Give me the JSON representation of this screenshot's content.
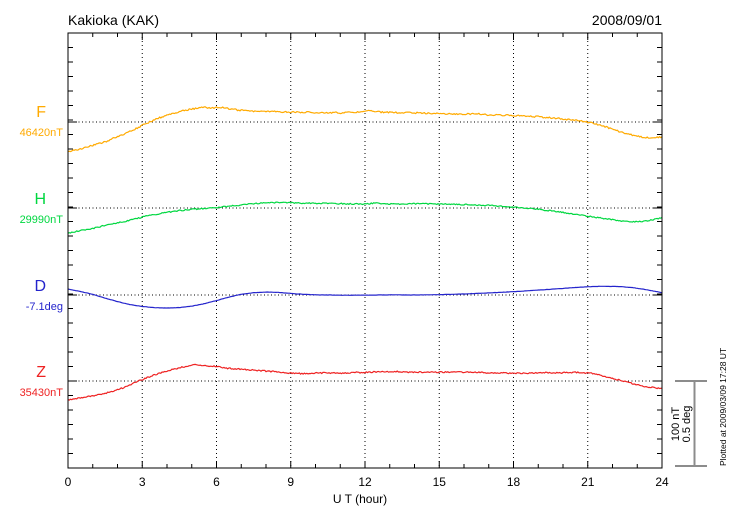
{
  "header": {
    "title": "Kakioka (KAK)",
    "date": "2008/09/01"
  },
  "x_axis": {
    "label": "U T (hour)",
    "tick_labels": [
      "0",
      "3",
      "6",
      "9",
      "12",
      "15",
      "18",
      "21",
      "24"
    ],
    "tick_hours": [
      0,
      3,
      6,
      9,
      12,
      15,
      18,
      21,
      24
    ]
  },
  "scale_bar": {
    "line1": "100 nT",
    "line2": "0.5 deg",
    "color": "#8c8c8c"
  },
  "footer": {
    "plotted_at": "Plotted at 2009/03/09 17:28 UT"
  },
  "chart_data": {
    "type": "line",
    "title": "Kakioka (KAK)",
    "date": "2008/09/01",
    "xlabel": "U T (hour)",
    "x_range": [
      0,
      24
    ],
    "x_tick_step_hours": 1,
    "x_grid_step_hours": 3,
    "grid": "dotted vertical lines every 3 h; dotted horizontal baseline per component",
    "legend_position": "left of each trace",
    "scale": {
      "px_per_unit_note": "scale bar height = 100 nT or 0.5 deg",
      "bar_labels": [
        "100 nT",
        "0.5 deg"
      ]
    },
    "series": [
      {
        "name": "F",
        "baseline_label": "46420nT",
        "baseline_value": 46420,
        "unit": "nT",
        "color": "#FFAA00",
        "points": [
          [
            0,
            -34
          ],
          [
            0.5,
            -31
          ],
          [
            1,
            -27
          ],
          [
            1.5,
            -23
          ],
          [
            2,
            -17
          ],
          [
            2.5,
            -11
          ],
          [
            3,
            -4
          ],
          [
            3.3,
            0
          ],
          [
            3.6,
            4
          ],
          [
            4,
            8
          ],
          [
            4.5,
            12
          ],
          [
            5,
            15
          ],
          [
            5.5,
            17
          ],
          [
            5.8,
            16
          ],
          [
            6.2,
            17
          ],
          [
            6.5,
            15
          ],
          [
            7,
            13.5
          ],
          [
            7.5,
            12.5
          ],
          [
            8,
            12
          ],
          [
            9,
            11.5
          ],
          [
            10,
            11
          ],
          [
            11,
            10.5
          ],
          [
            11.8,
            11.5
          ],
          [
            12.2,
            13
          ],
          [
            12.5,
            11.5
          ],
          [
            13,
            11
          ],
          [
            14,
            10.5
          ],
          [
            15,
            10
          ],
          [
            16,
            9
          ],
          [
            16.5,
            9.8
          ],
          [
            17,
            8
          ],
          [
            18,
            7.5
          ],
          [
            19,
            6
          ],
          [
            20,
            3.5
          ],
          [
            20.8,
            1
          ],
          [
            21.3,
            -2
          ],
          [
            22,
            -8
          ],
          [
            22.5,
            -13
          ],
          [
            23,
            -16.5
          ],
          [
            23.5,
            -18.5
          ],
          [
            24,
            -17.5
          ]
        ]
      },
      {
        "name": "H",
        "baseline_label": "29990nT",
        "baseline_value": 29990,
        "unit": "nT",
        "color": "#00D740",
        "points": [
          [
            0,
            -29
          ],
          [
            0.5,
            -26
          ],
          [
            1,
            -23.5
          ],
          [
            1.5,
            -20
          ],
          [
            2,
            -17
          ],
          [
            2.3,
            -15.5
          ],
          [
            2.8,
            -12
          ],
          [
            3.2,
            -9
          ],
          [
            3.6,
            -7
          ],
          [
            4,
            -5
          ],
          [
            4.5,
            -3
          ],
          [
            5,
            -1.5
          ],
          [
            5.5,
            -0.5
          ],
          [
            6,
            0.5
          ],
          [
            6.5,
            2
          ],
          [
            7,
            3.5
          ],
          [
            7.5,
            5
          ],
          [
            8,
            6
          ],
          [
            8.5,
            6.5
          ],
          [
            9,
            6
          ],
          [
            9.5,
            5.5
          ],
          [
            10,
            5.5
          ],
          [
            11,
            5
          ],
          [
            12,
            4.5
          ],
          [
            12.4,
            5.8
          ],
          [
            12.8,
            4.5
          ],
          [
            13.5,
            4.5
          ],
          [
            14,
            5
          ],
          [
            15,
            4.5
          ],
          [
            16,
            4
          ],
          [
            17,
            3
          ],
          [
            17.5,
            2
          ],
          [
            18,
            1
          ],
          [
            18.6,
            0
          ],
          [
            19,
            -1.5
          ],
          [
            20,
            -5
          ],
          [
            21,
            -9.5
          ],
          [
            22,
            -13.5
          ],
          [
            22.7,
            -16
          ],
          [
            23.2,
            -15.5
          ],
          [
            23.6,
            -13.5
          ],
          [
            24,
            -11
          ]
        ]
      },
      {
        "name": "D",
        "baseline_label": "-7.1deg",
        "baseline_value": -7.1,
        "unit": "deg",
        "color": "#2424CC",
        "points": [
          [
            0,
            0.034
          ],
          [
            0.5,
            0.02
          ],
          [
            1,
            0.004
          ],
          [
            1.5,
            -0.018
          ],
          [
            2,
            -0.038
          ],
          [
            2.5,
            -0.055
          ],
          [
            3,
            -0.066
          ],
          [
            3.5,
            -0.073
          ],
          [
            4,
            -0.075
          ],
          [
            4.5,
            -0.072
          ],
          [
            5,
            -0.064
          ],
          [
            5.5,
            -0.05
          ],
          [
            6,
            -0.032
          ],
          [
            6.5,
            -0.012
          ],
          [
            7,
            0.004
          ],
          [
            7.5,
            0.013
          ],
          [
            8,
            0.017
          ],
          [
            8.5,
            0.015
          ],
          [
            9,
            0.009
          ],
          [
            9.5,
            0.004
          ],
          [
            10,
            0.001
          ],
          [
            11,
            -0.001
          ],
          [
            12,
            -0.001
          ],
          [
            13,
            0.001
          ],
          [
            14,
            0
          ],
          [
            15,
            0.002
          ],
          [
            16,
            0.006
          ],
          [
            17,
            0.012
          ],
          [
            18,
            0.019
          ],
          [
            19,
            0.028
          ],
          [
            20,
            0.038
          ],
          [
            20.8,
            0.046
          ],
          [
            21.5,
            0.05
          ],
          [
            22.2,
            0.049
          ],
          [
            22.8,
            0.043
          ],
          [
            23.4,
            0.03
          ],
          [
            24,
            0.013
          ]
        ]
      },
      {
        "name": "Z",
        "baseline_label": "35430nT",
        "baseline_value": 35430,
        "unit": "nT",
        "color": "#EE2222",
        "points": [
          [
            0,
            -22
          ],
          [
            0.5,
            -19.5
          ],
          [
            1,
            -17
          ],
          [
            1.3,
            -15.5
          ],
          [
            1.8,
            -12
          ],
          [
            2.2,
            -8
          ],
          [
            2.7,
            -2
          ],
          [
            3.2,
            4
          ],
          [
            3.7,
            9
          ],
          [
            4.2,
            13
          ],
          [
            4.7,
            16.5
          ],
          [
            5.1,
            18.5
          ],
          [
            5.5,
            18
          ],
          [
            6,
            16.5
          ],
          [
            6.5,
            14.5
          ],
          [
            7,
            13.5
          ],
          [
            7.5,
            12.5
          ],
          [
            8,
            11.5
          ],
          [
            8.5,
            10.5
          ],
          [
            9,
            9
          ],
          [
            9.5,
            8.5
          ],
          [
            10,
            9
          ],
          [
            10.5,
            9.5
          ],
          [
            11,
            9
          ],
          [
            11.5,
            9.5
          ],
          [
            12,
            10
          ],
          [
            12.6,
            10.5
          ],
          [
            13.2,
            11
          ],
          [
            13.8,
            10
          ],
          [
            14.5,
            10
          ],
          [
            15.5,
            10
          ],
          [
            16.3,
            10.5
          ],
          [
            17,
            9.5
          ],
          [
            18,
            9
          ],
          [
            19,
            9.5
          ],
          [
            20,
            9.5
          ],
          [
            20.6,
            10
          ],
          [
            21.2,
            8.5
          ],
          [
            21.6,
            6
          ],
          [
            22,
            3
          ],
          [
            22.4,
            0
          ],
          [
            22.8,
            -3
          ],
          [
            23.2,
            -5.5
          ],
          [
            23.6,
            -7.5
          ],
          [
            24,
            -9
          ]
        ]
      }
    ]
  }
}
